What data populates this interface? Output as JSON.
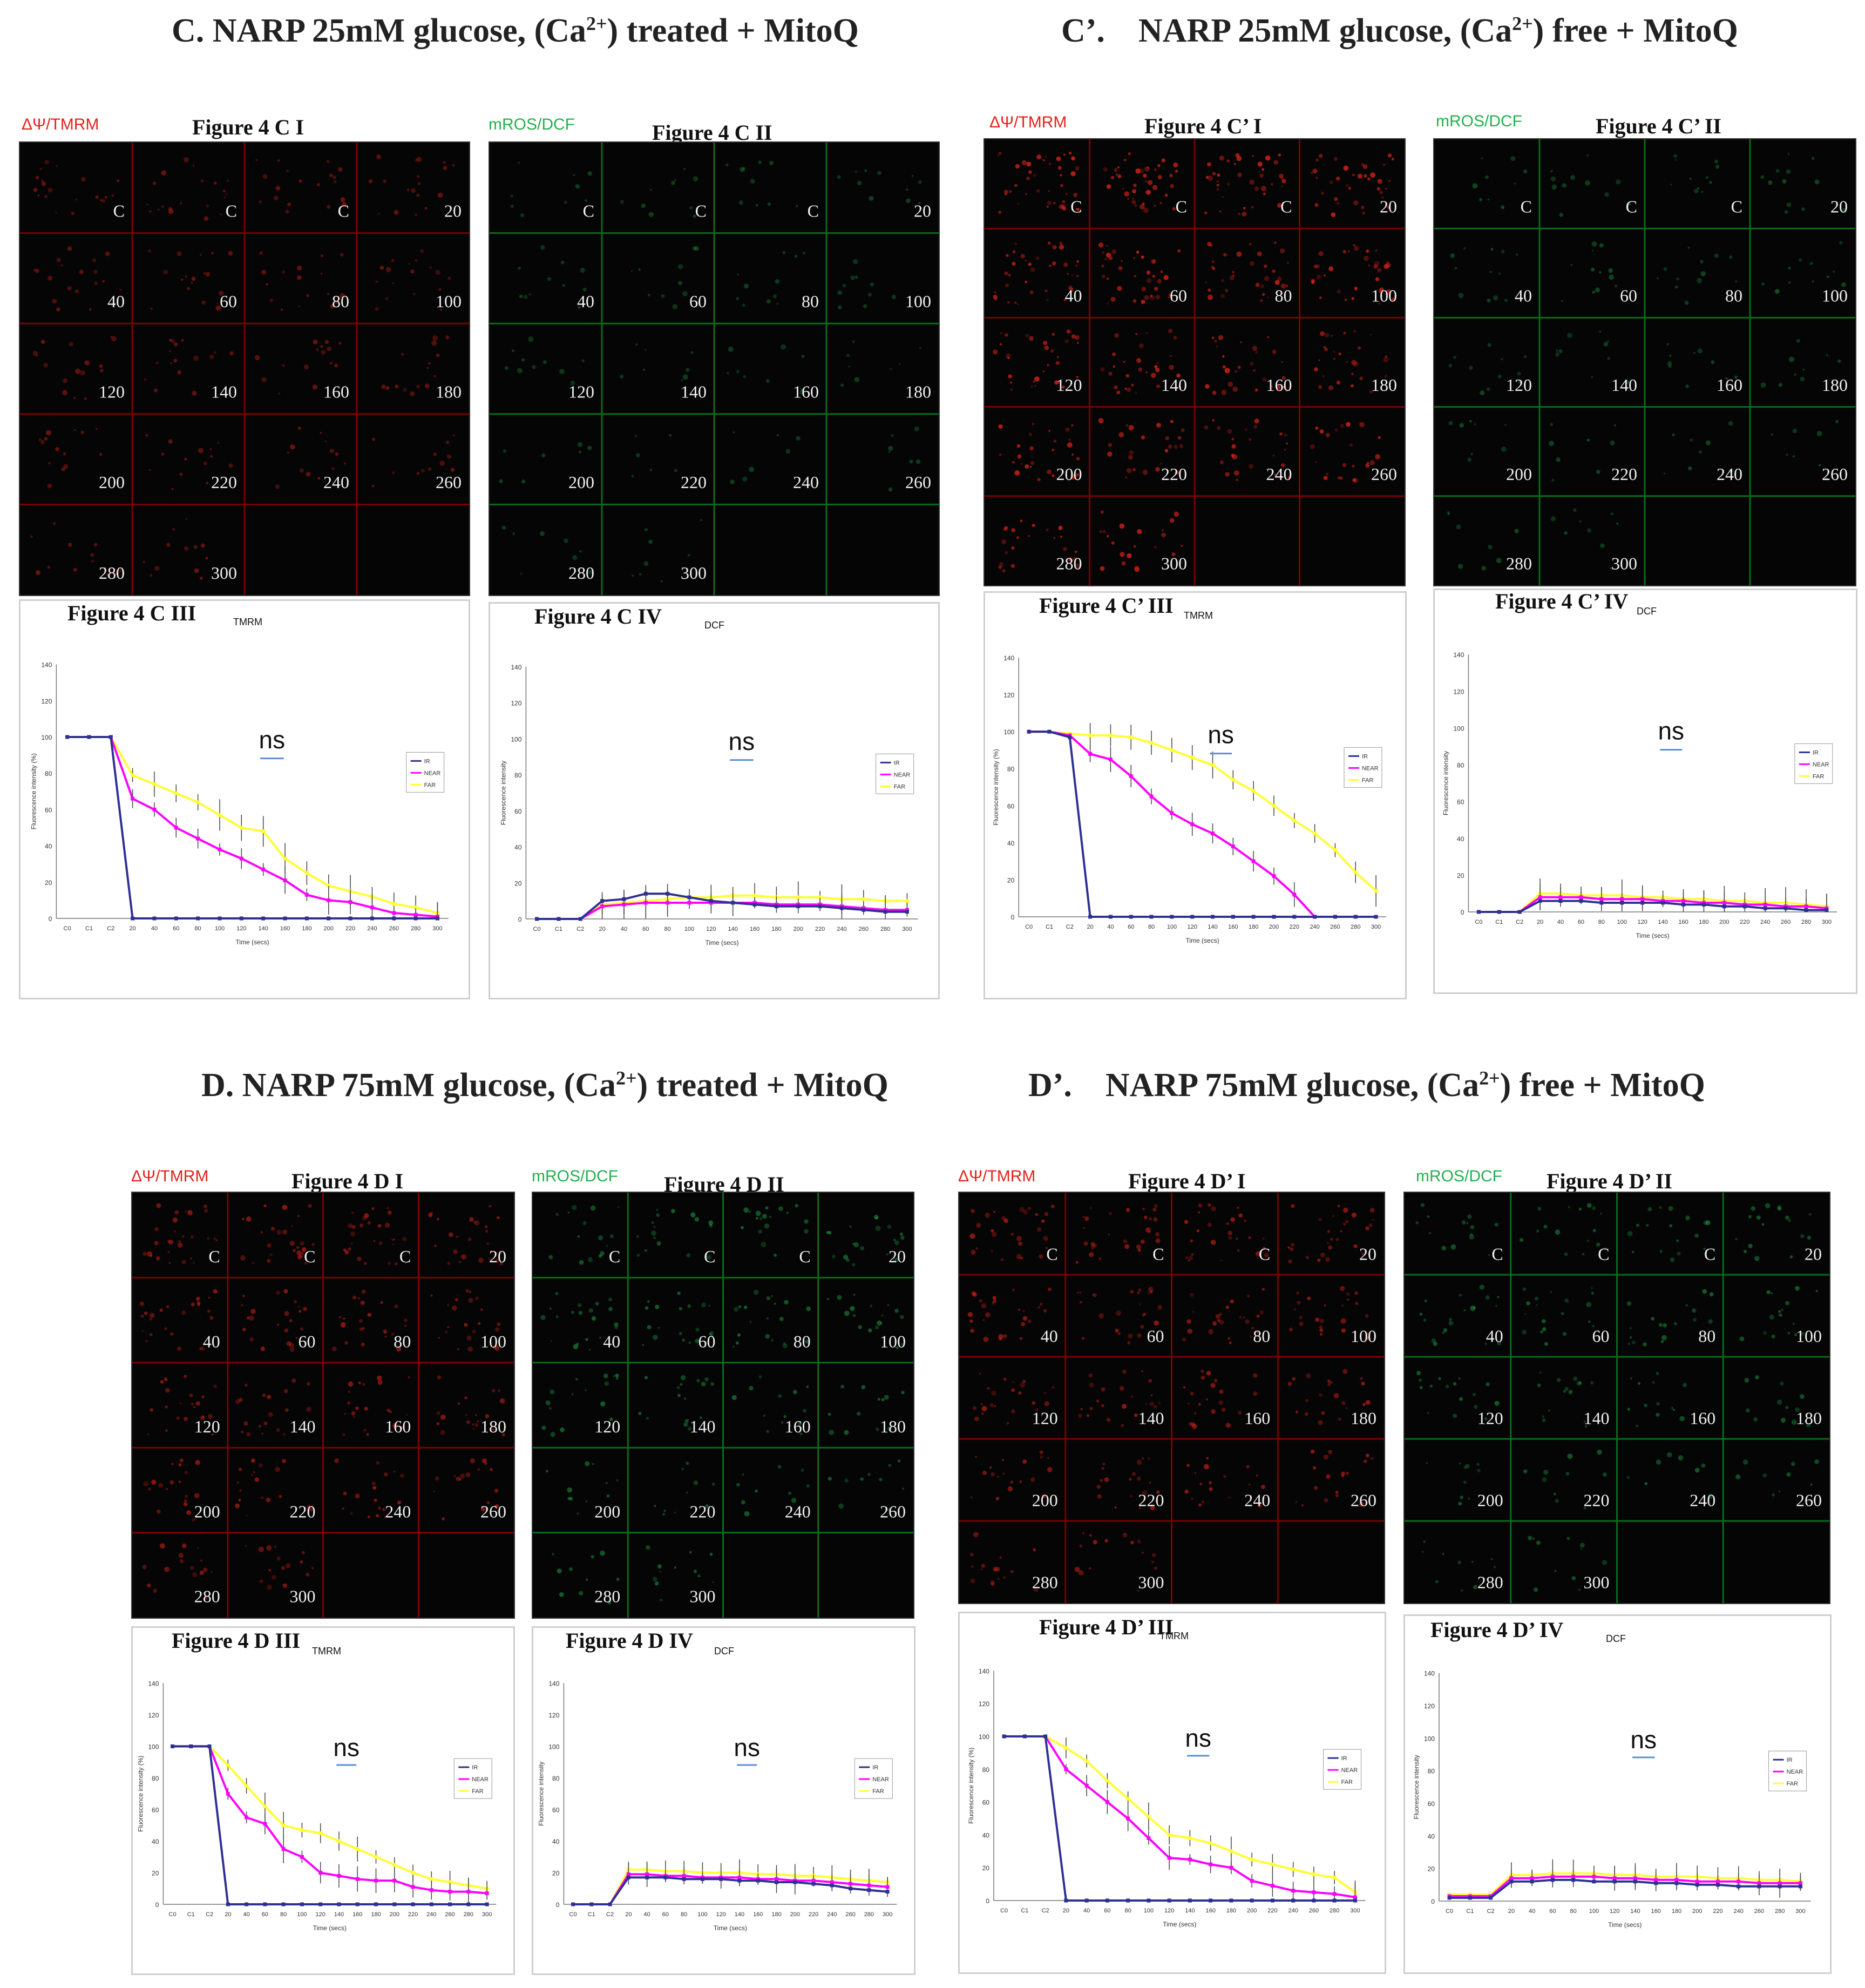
{
  "headings": {
    "C": "C. NARP 25mM glucose, (Ca2+) treated + MitoQ",
    "Cp": "C’.    NARP 25mM glucose, (Ca2+) free + MitoQ",
    "D": "D. NARP 75mM glucose, (Ca2+) treated + MitoQ",
    "Dp": "D’.    NARP 75mM glucose, (Ca2+) free + MitoQ"
  },
  "dye_labels": {
    "tmrm": "ΔΨ/TMRM",
    "dcf": "mROS/DCF"
  },
  "colors": {
    "tmrm": "#e2231a",
    "dcf": "#22b14c",
    "ir": "#2e3192",
    "near": "#ff00ff",
    "far": "#ffff33",
    "grid_red": "#7a0000",
    "grid_green": "#0b6b1a"
  },
  "cell_labels": [
    "C",
    "C",
    "C",
    "20",
    "40",
    "60",
    "80",
    "100",
    "120",
    "140",
    "160",
    "180",
    "200",
    "220",
    "240",
    "260",
    "280",
    "300"
  ],
  "image_panels": [
    {
      "id": "c1",
      "title": "Figure 4 C I",
      "dye": "tmrm",
      "brightness": 0.35
    },
    {
      "id": "c2",
      "title": "Figure 4 C II",
      "dye": "dcf",
      "brightness": 0.15
    },
    {
      "id": "cp1",
      "title": "Figure 4 C’ I",
      "dye": "tmrm",
      "brightness": 0.9
    },
    {
      "id": "cp2",
      "title": "Figure 4 C’ II",
      "dye": "dcf",
      "brightness": 0.2
    },
    {
      "id": "d1",
      "title": "Figure 4 D I",
      "dye": "tmrm",
      "brightness": 0.55
    },
    {
      "id": "d2",
      "title": "Figure 4 D II",
      "dye": "dcf",
      "brightness": 0.45
    },
    {
      "id": "dp1",
      "title": "Figure 4 D’ I",
      "dye": "tmrm",
      "brightness": 0.6
    },
    {
      "id": "dp2",
      "title": "Figure 4 D’ II",
      "dye": "dcf",
      "brightness": 0.4
    }
  ],
  "chart_data": [
    {
      "id": "c3",
      "type": "line",
      "title": "Figure 4 C III",
      "tag": "TMRM",
      "xlabel": "Time (secs)",
      "ylabel": "Fluorescence intensity (%)",
      "categories": [
        "C0",
        "C1",
        "C2",
        "20",
        "40",
        "60",
        "80",
        "100",
        "120",
        "140",
        "160",
        "180",
        "200",
        "220",
        "240",
        "260",
        "280",
        "300"
      ],
      "ylim": [
        0,
        140
      ],
      "yticks": [
        0,
        20,
        40,
        60,
        80,
        100,
        120,
        140
      ],
      "annotation": "ns",
      "legend": [
        "IR",
        "NEAR",
        "FAR"
      ],
      "legend_position": "right",
      "series": [
        {
          "name": "IR",
          "values": [
            100,
            100,
            100,
            0,
            0,
            0,
            0,
            0,
            0,
            0,
            0,
            0,
            0,
            0,
            0,
            0,
            0,
            0
          ]
        },
        {
          "name": "NEAR",
          "values": [
            100,
            100,
            100,
            66,
            60,
            50,
            44,
            38,
            33,
            27,
            21,
            13,
            10,
            9,
            6,
            3,
            2,
            1
          ]
        },
        {
          "name": "FAR",
          "values": [
            100,
            100,
            100,
            79,
            74,
            69,
            64,
            57,
            50,
            48,
            33,
            25,
            18,
            15,
            12,
            8,
            6,
            3
          ]
        }
      ]
    },
    {
      "id": "c4",
      "type": "line",
      "title": "Figure 4 C IV",
      "tag": "DCF",
      "xlabel": "Time (secs)",
      "ylabel": "Fluorescence intensity",
      "categories": [
        "C0",
        "C1",
        "C2",
        "20",
        "40",
        "60",
        "80",
        "100",
        "120",
        "140",
        "160",
        "180",
        "200",
        "220",
        "240",
        "260",
        "280",
        "300"
      ],
      "ylim": [
        0,
        140
      ],
      "yticks": [
        0,
        20,
        40,
        60,
        80,
        100,
        120,
        140
      ],
      "annotation": "ns",
      "legend": [
        "IR",
        "NEAR",
        "FAR"
      ],
      "legend_position": "right",
      "series": [
        {
          "name": "IR",
          "values": [
            0,
            0,
            0,
            10,
            11,
            14,
            14,
            12,
            10,
            9,
            8,
            7,
            7,
            7,
            6,
            5,
            4,
            4
          ]
        },
        {
          "name": "NEAR",
          "values": [
            0,
            0,
            0,
            7,
            8,
            9,
            9,
            9,
            9,
            9,
            9,
            8,
            8,
            8,
            7,
            6,
            5,
            5
          ]
        },
        {
          "name": "FAR",
          "values": [
            0,
            0,
            0,
            8,
            9,
            10,
            11,
            12,
            12,
            13,
            13,
            12,
            12,
            12,
            11,
            11,
            10,
            10
          ]
        }
      ]
    },
    {
      "id": "cp3",
      "type": "line",
      "title": "Figure 4 C’ III",
      "tag": "TMRM",
      "xlabel": "Time (secs)",
      "ylabel": "Fluorescence intensity (%)",
      "categories": [
        "C0",
        "C1",
        "C2",
        "20",
        "40",
        "60",
        "80",
        "100",
        "120",
        "140",
        "160",
        "180",
        "200",
        "220",
        "240",
        "260",
        "280",
        "300"
      ],
      "ylim": [
        0,
        140
      ],
      "yticks": [
        0,
        20,
        40,
        60,
        80,
        100,
        120,
        140
      ],
      "annotation": "ns",
      "legend": [
        "IR",
        "NEAR",
        "FAR"
      ],
      "legend_position": "right",
      "series": [
        {
          "name": "IR",
          "values": [
            100,
            100,
            97,
            0,
            0,
            0,
            0,
            0,
            0,
            0,
            0,
            0,
            0,
            0,
            0,
            0,
            0,
            0
          ]
        },
        {
          "name": "NEAR",
          "values": [
            100,
            100,
            98,
            88,
            85,
            76,
            65,
            56,
            50,
            45,
            38,
            30,
            22,
            12,
            0,
            0,
            0,
            0
          ]
        },
        {
          "name": "FAR",
          "values": [
            100,
            100,
            99,
            98,
            98,
            97,
            94,
            90,
            86,
            82,
            74,
            68,
            60,
            52,
            45,
            36,
            24,
            14
          ]
        }
      ]
    },
    {
      "id": "cp4",
      "type": "line",
      "title": "Figure 4 C’ IV",
      "tag": "DCF",
      "xlabel": "Time (secs)",
      "ylabel": "Fluorescence intensity",
      "categories": [
        "C0",
        "C1",
        "C2",
        "20",
        "40",
        "60",
        "80",
        "100",
        "120",
        "140",
        "160",
        "180",
        "200",
        "220",
        "240",
        "260",
        "280",
        "300"
      ],
      "ylim": [
        0,
        140
      ],
      "yticks": [
        0,
        20,
        40,
        60,
        80,
        100,
        120,
        140
      ],
      "annotation": "ns",
      "legend": [
        "IR",
        "NEAR",
        "FAR"
      ],
      "legend_position": "right",
      "series": [
        {
          "name": "IR",
          "values": [
            0,
            0,
            0,
            6,
            6,
            6,
            5,
            5,
            5,
            5,
            4,
            4,
            3,
            3,
            2,
            2,
            1,
            1
          ]
        },
        {
          "name": "NEAR",
          "values": [
            0,
            0,
            0,
            8,
            8,
            8,
            7,
            7,
            7,
            6,
            6,
            5,
            5,
            4,
            4,
            3,
            3,
            2
          ]
        },
        {
          "name": "FAR",
          "values": [
            0,
            0,
            0,
            10,
            10,
            9,
            9,
            9,
            8,
            8,
            7,
            7,
            6,
            6,
            5,
            5,
            4,
            3
          ]
        }
      ]
    },
    {
      "id": "d3",
      "type": "line",
      "title": "Figure 4 D III",
      "tag": "TMRM",
      "xlabel": "Time (secs)",
      "ylabel": "Fluorescence intensity (%)",
      "categories": [
        "C0",
        "C1",
        "C2",
        "20",
        "40",
        "60",
        "80",
        "100",
        "120",
        "140",
        "160",
        "180",
        "200",
        "220",
        "240",
        "260",
        "280",
        "300"
      ],
      "ylim": [
        0,
        140
      ],
      "yticks": [
        0,
        20,
        40,
        60,
        80,
        100,
        120,
        140
      ],
      "annotation": "ns",
      "legend": [
        "IR",
        "NEAR",
        "FAR"
      ],
      "legend_position": "right",
      "series": [
        {
          "name": "IR",
          "values": [
            100,
            100,
            100,
            0,
            0,
            0,
            0,
            0,
            0,
            0,
            0,
            0,
            0,
            0,
            0,
            0,
            0,
            0
          ]
        },
        {
          "name": "NEAR",
          "values": [
            100,
            100,
            100,
            70,
            55,
            51,
            35,
            30,
            20,
            18,
            16,
            15,
            15,
            11,
            9,
            8,
            8,
            7
          ]
        },
        {
          "name": "FAR",
          "values": [
            100,
            100,
            100,
            88,
            75,
            62,
            50,
            47,
            45,
            40,
            35,
            30,
            25,
            20,
            16,
            14,
            12,
            10
          ]
        }
      ]
    },
    {
      "id": "d4",
      "type": "line",
      "title": "Figure 4 D IV",
      "tag": "DCF",
      "xlabel": "Time (secs)",
      "ylabel": "Fluorescence intensity",
      "categories": [
        "C0",
        "C1",
        "C2",
        "20",
        "40",
        "60",
        "80",
        "100",
        "120",
        "140",
        "160",
        "180",
        "200",
        "220",
        "240",
        "260",
        "280",
        "300"
      ],
      "ylim": [
        0,
        140
      ],
      "yticks": [
        0,
        20,
        40,
        60,
        80,
        100,
        120,
        140
      ],
      "annotation": "ns",
      "legend": [
        "IR",
        "NEAR",
        "FAR"
      ],
      "legend_position": "right",
      "series": [
        {
          "name": "IR",
          "values": [
            0,
            0,
            0,
            17,
            17,
            17,
            16,
            16,
            16,
            15,
            15,
            14,
            14,
            13,
            12,
            10,
            9,
            8
          ]
        },
        {
          "name": "NEAR",
          "values": [
            0,
            0,
            0,
            19,
            19,
            18,
            18,
            17,
            17,
            17,
            16,
            16,
            15,
            15,
            14,
            13,
            12,
            11
          ]
        },
        {
          "name": "FAR",
          "values": [
            0,
            0,
            0,
            22,
            22,
            21,
            21,
            20,
            20,
            20,
            19,
            19,
            18,
            18,
            17,
            16,
            15,
            14
          ]
        }
      ]
    },
    {
      "id": "dp3",
      "type": "line",
      "title": "Figure 4 D’ III",
      "tag": "TMRM",
      "xlabel": "Time (secs)",
      "ylabel": "Fluorescence intensity (%)",
      "categories": [
        "C0",
        "C1",
        "C2",
        "20",
        "40",
        "60",
        "80",
        "100",
        "120",
        "140",
        "160",
        "180",
        "200",
        "220",
        "240",
        "260",
        "280",
        "300"
      ],
      "ylim": [
        0,
        140
      ],
      "yticks": [
        0,
        20,
        40,
        60,
        80,
        100,
        120,
        140
      ],
      "annotation": "ns",
      "legend": [
        "IR",
        "NEAR",
        "FAR"
      ],
      "legend_position": "right",
      "series": [
        {
          "name": "IR",
          "values": [
            100,
            100,
            100,
            0,
            0,
            0,
            0,
            0,
            0,
            0,
            0,
            0,
            0,
            0,
            0,
            0,
            0,
            0
          ]
        },
        {
          "name": "NEAR",
          "values": [
            100,
            100,
            100,
            80,
            70,
            60,
            50,
            38,
            26,
            25,
            22,
            20,
            12,
            9,
            6,
            5,
            4,
            2
          ]
        },
        {
          "name": "FAR",
          "values": [
            100,
            100,
            100,
            93,
            85,
            73,
            62,
            51,
            40,
            38,
            35,
            30,
            25,
            22,
            19,
            16,
            14,
            5
          ]
        }
      ]
    },
    {
      "id": "dp4",
      "type": "line",
      "title": "Figure 4 D’ IV",
      "tag": "DCF",
      "xlabel": "Time (secs)",
      "ylabel": "Fluorescence intensity",
      "categories": [
        "C0",
        "C1",
        "C2",
        "20",
        "40",
        "60",
        "80",
        "100",
        "120",
        "140",
        "160",
        "180",
        "200",
        "220",
        "240",
        "260",
        "280",
        "300"
      ],
      "ylim": [
        0,
        140
      ],
      "yticks": [
        0,
        20,
        40,
        60,
        80,
        100,
        120,
        140
      ],
      "annotation": "ns",
      "legend": [
        "IR",
        "NEAR",
        "FAR"
      ],
      "legend_position": "right",
      "series": [
        {
          "name": "IR",
          "values": [
            2,
            2,
            2,
            12,
            12,
            13,
            13,
            12,
            12,
            12,
            11,
            11,
            10,
            10,
            9,
            9,
            9,
            9
          ]
        },
        {
          "name": "NEAR",
          "values": [
            3,
            3,
            3,
            14,
            14,
            15,
            15,
            15,
            14,
            14,
            13,
            13,
            12,
            12,
            12,
            11,
            11,
            11
          ]
        },
        {
          "name": "FAR",
          "values": [
            4,
            4,
            4,
            16,
            16,
            17,
            17,
            17,
            16,
            16,
            15,
            15,
            15,
            14,
            14,
            13,
            13,
            12
          ]
        }
      ]
    }
  ]
}
